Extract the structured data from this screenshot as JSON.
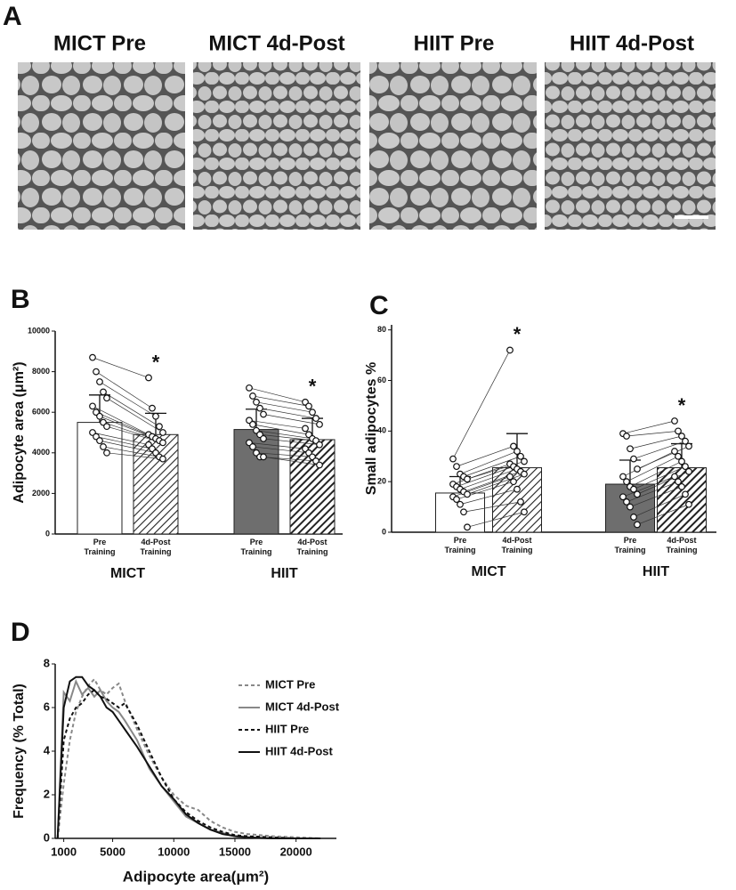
{
  "panel_a": {
    "label": "A",
    "titles": [
      "MICT Pre",
      "MICT 4d-Post",
      "HIIT Pre",
      "HIIT 4d-Post"
    ]
  },
  "chart_data": [
    {
      "type": "bar",
      "panel_label": "B",
      "y_label": "Adipocyte area (μm²)",
      "categories": [
        "Pre Training",
        "4d-Post Training",
        "Pre Training",
        "4d-Post Training"
      ],
      "group_labels": [
        "MICT",
        "HIIT"
      ],
      "values": [
        5500,
        4900,
        5150,
        4650
      ],
      "errors": [
        1350,
        1050,
        1000,
        1050
      ],
      "colors": [
        "#ffffff",
        "#ffffff",
        "#6e6e6e",
        "#3a3a3a"
      ],
      "hatched": [
        false,
        true,
        false,
        true
      ],
      "significant": [
        false,
        true,
        false,
        true
      ],
      "sig_marker": "*",
      "points": [
        [
          8700,
          8000,
          7500,
          7000,
          6700,
          6300,
          6000,
          5800,
          5500,
          5300,
          5000,
          4800,
          4600,
          4300,
          4000
        ],
        [
          7700,
          6200,
          5800,
          5300,
          5000,
          4900,
          4800,
          4700,
          4600,
          4500,
          4400,
          4200,
          4000,
          3800,
          3700
        ],
        [
          7200,
          6800,
          6500,
          6200,
          5900,
          5600,
          5400,
          5100,
          4900,
          4700,
          4500,
          4300,
          4000,
          3800,
          3800
        ],
        [
          6500,
          6300,
          6000,
          5700,
          5400,
          5200,
          4900,
          4700,
          4600,
          4400,
          4200,
          4000,
          3800,
          3600,
          3400
        ]
      ],
      "ylim": [
        0,
        10000
      ],
      "yticks": [
        0,
        2000,
        4000,
        6000,
        8000,
        10000
      ]
    },
    {
      "type": "bar",
      "panel_label": "C",
      "y_label": "Small adipocytes %",
      "categories": [
        "Pre Training",
        "4d-Post Training",
        "Pre Training",
        "4d-Post Training"
      ],
      "group_labels": [
        "MICT",
        "HIIT"
      ],
      "values": [
        15.5,
        25.5,
        19,
        25.5
      ],
      "errors": [
        6.5,
        13.5,
        9.5,
        9.5
      ],
      "colors": [
        "#ffffff",
        "#ffffff",
        "#6e6e6e",
        "#3a3a3a"
      ],
      "hatched": [
        false,
        true,
        false,
        true
      ],
      "significant": [
        false,
        true,
        false,
        true
      ],
      "sig_marker": "*",
      "points": [
        [
          29,
          26,
          23,
          22,
          21,
          19,
          18,
          17,
          16,
          15,
          14,
          13,
          11,
          8,
          2
        ],
        [
          72,
          34,
          32,
          30,
          28,
          27,
          26,
          25,
          24,
          23,
          22,
          20,
          17,
          12,
          8
        ],
        [
          39,
          38,
          33,
          29,
          25,
          22,
          20,
          18,
          17,
          15,
          14,
          12,
          10,
          6,
          3
        ],
        [
          44,
          40,
          38,
          36,
          34,
          32,
          30,
          28,
          26,
          24,
          22,
          20,
          18,
          15,
          11
        ]
      ],
      "ylim": [
        0,
        82
      ],
      "yticks": [
        0,
        20,
        40,
        60,
        80
      ]
    },
    {
      "type": "line",
      "panel_label": "D",
      "x_label": "Adipocyte area(μm²)",
      "y_label": "Frequency (% Total)",
      "x": [
        500,
        1000,
        1500,
        2000,
        2500,
        3000,
        3500,
        4000,
        4500,
        5000,
        5500,
        6000,
        7000,
        8000,
        9000,
        10000,
        11000,
        12000,
        13000,
        14000,
        15000,
        16000,
        18000,
        20000,
        22000
      ],
      "series": [
        {
          "name": "MICT Pre",
          "color": "#888888",
          "dashed": true,
          "values": [
            0,
            2.5,
            4.5,
            5.8,
            6.5,
            7.0,
            7.3,
            6.8,
            6.6,
            6.9,
            7.1,
            6.3,
            5.0,
            3.8,
            2.8,
            2.0,
            1.5,
            1.3,
            0.8,
            0.5,
            0.3,
            0.2,
            0.1,
            0.05,
            0
          ]
        },
        {
          "name": "MICT 4d-Post",
          "color": "#888888",
          "dashed": false,
          "values": [
            0,
            6.7,
            6.3,
            7.2,
            6.6,
            6.9,
            6.5,
            6.8,
            6.3,
            6.0,
            5.8,
            5.4,
            4.5,
            3.2,
            2.4,
            1.7,
            1.0,
            0.7,
            0.4,
            0.25,
            0.1,
            0.05,
            0,
            0,
            0
          ]
        },
        {
          "name": "HIIT Pre",
          "color": "#111111",
          "dashed": true,
          "values": [
            0,
            4.5,
            5.5,
            6.0,
            6.2,
            6.6,
            6.8,
            6.5,
            6.4,
            6.2,
            6.0,
            6.2,
            5.2,
            4.0,
            2.8,
            1.8,
            1.2,
            0.8,
            0.5,
            0.3,
            0.15,
            0.1,
            0.05,
            0,
            0
          ]
        },
        {
          "name": "HIIT 4d-Post",
          "color": "#111111",
          "dashed": false,
          "values": [
            0,
            6.0,
            7.2,
            7.4,
            7.4,
            7.0,
            6.8,
            6.5,
            6.0,
            5.8,
            5.4,
            5.0,
            4.2,
            3.3,
            2.4,
            1.8,
            1.1,
            0.7,
            0.4,
            0.2,
            0.1,
            0.05,
            0,
            0,
            0
          ]
        }
      ],
      "xlim": [
        300,
        23300
      ],
      "xticks": [
        1000,
        5000,
        10000,
        15000,
        20000
      ],
      "ylim": [
        0,
        8
      ],
      "yticks": [
        0,
        2,
        4,
        6,
        8
      ]
    }
  ]
}
